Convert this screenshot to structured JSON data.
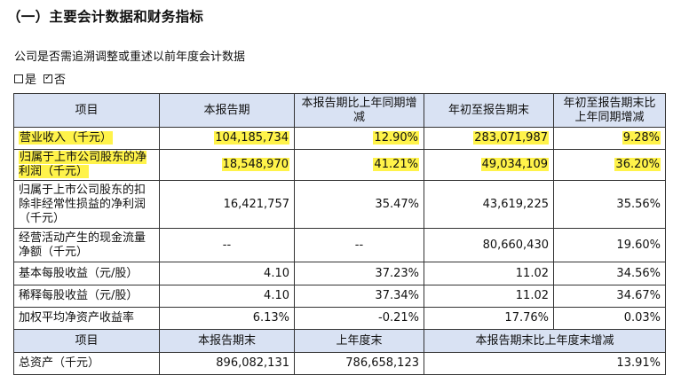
{
  "section_title": "（一）主要会计数据和财务指标",
  "question": "公司是否需追溯调整或重述以前年度会计数据",
  "answer_options": [
    {
      "label": "是",
      "checked": false
    },
    {
      "label": "否",
      "checked": true
    }
  ],
  "table1": {
    "headers": [
      "项目",
      "本报告期",
      "本报告期比上年同期增减",
      "年初至报告期末",
      "年初至报告期末比上年同期增减"
    ],
    "rows": [
      {
        "item": "营业收入（千元）",
        "current": "104,185,734",
        "current_change": "12.90%",
        "ytd": "283,071,987",
        "ytd_change": "9.28%",
        "highlight": true
      },
      {
        "item": "归属于上市公司股东的净利润（千元）",
        "current": "18,548,970",
        "current_change": "41.21%",
        "ytd": "49,034,109",
        "ytd_change": "36.20%",
        "highlight": true
      },
      {
        "item": "归属于上市公司股东的扣除非经常性损益的净利润（千元）",
        "current": "16,421,757",
        "current_change": "35.47%",
        "ytd": "43,619,225",
        "ytd_change": "35.56%",
        "highlight": false
      },
      {
        "item": "经营活动产生的现金流量净额（千元）",
        "current": "--",
        "current_change": "--",
        "ytd": "80,660,430",
        "ytd_change": "19.60%",
        "highlight": false
      },
      {
        "item": "基本每股收益（元/股）",
        "current": "4.10",
        "current_change": "37.23%",
        "ytd": "11.02",
        "ytd_change": "34.56%",
        "highlight": false
      },
      {
        "item": "稀释每股收益（元/股）",
        "current": "4.10",
        "current_change": "37.34%",
        "ytd": "11.02",
        "ytd_change": "34.67%",
        "highlight": false
      },
      {
        "item": "加权平均净资产收益率",
        "current": "6.13%",
        "current_change": "-0.21%",
        "ytd": "17.76%",
        "ytd_change": "0.03%",
        "highlight": false
      }
    ]
  },
  "table2": {
    "headers": [
      "项目",
      "本报告期末",
      "上年度末",
      "本报告期末比上年度末增减"
    ],
    "rows": [
      {
        "item": "总资产（千元）",
        "period_end": "896,082,131",
        "prior_year_end": "786,658,123",
        "change": "13.91%"
      }
    ]
  },
  "highlight_color": "#fff34a",
  "header_color": "#d9e2f3"
}
